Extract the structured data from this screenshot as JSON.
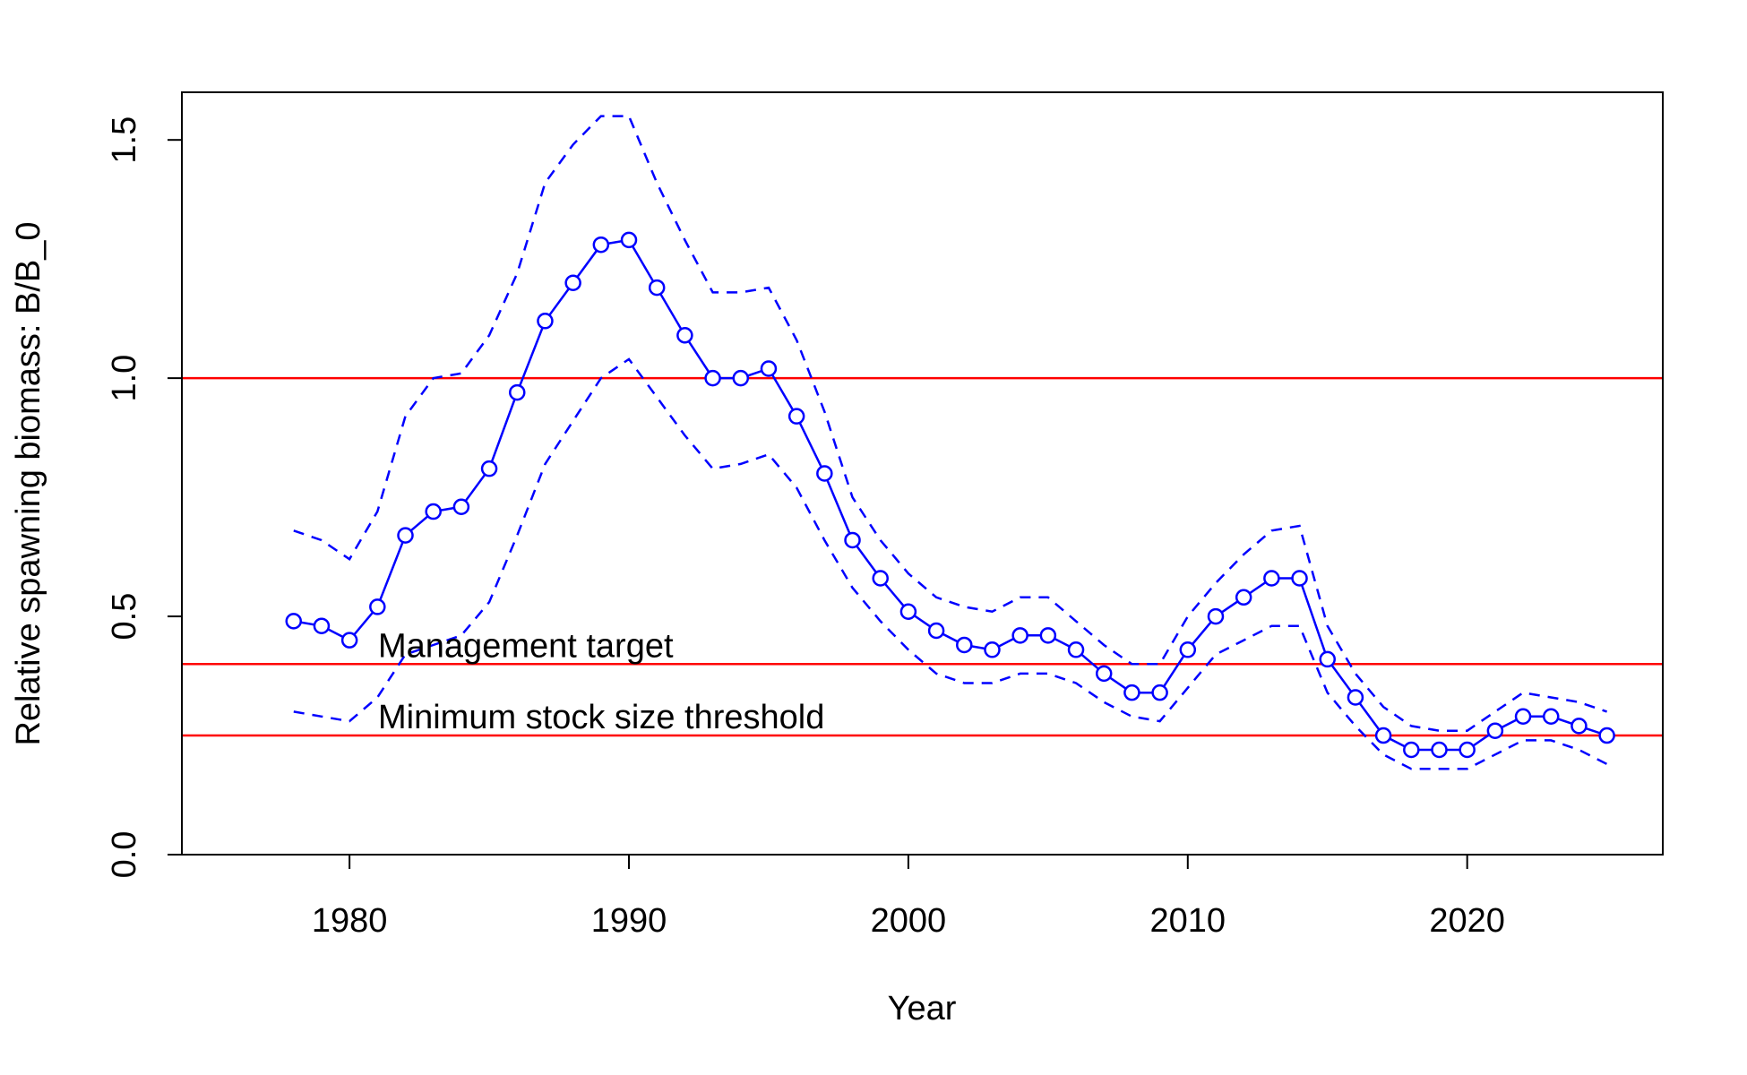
{
  "chart_data": {
    "type": "line",
    "title": "",
    "xlabel": "Year",
    "ylabel": "Relative spawning biomass: B/B_0",
    "xlim": [
      1974,
      2027
    ],
    "ylim": [
      0,
      1.6
    ],
    "x_ticks": [
      1980,
      1990,
      2000,
      2010,
      2020
    ],
    "y_ticks": [
      0.0,
      0.5,
      1.0,
      1.5
    ],
    "x_tick_labels": [
      "1980",
      "1990",
      "2000",
      "2010",
      "2020"
    ],
    "y_tick_labels": [
      "0.0",
      "0.5",
      "1.0",
      "1.5"
    ],
    "grid": false,
    "legend": "none",
    "years": [
      1978,
      1979,
      1980,
      1981,
      1982,
      1983,
      1984,
      1985,
      1986,
      1987,
      1988,
      1989,
      1990,
      1991,
      1992,
      1993,
      1994,
      1995,
      1996,
      1997,
      1998,
      1999,
      2000,
      2001,
      2002,
      2003,
      2004,
      2005,
      2006,
      2007,
      2008,
      2009,
      2010,
      2011,
      2012,
      2013,
      2014,
      2015,
      2016,
      2017,
      2018,
      2019,
      2020,
      2021,
      2022,
      2023,
      2024,
      2025
    ],
    "series": [
      {
        "role": "estimate",
        "style": "line-with-open-circles",
        "color": "#0000FF",
        "values": [
          0.49,
          0.48,
          0.45,
          0.52,
          0.67,
          0.72,
          0.73,
          0.81,
          0.97,
          1.12,
          1.2,
          1.28,
          1.29,
          1.19,
          1.09,
          1.0,
          1.0,
          1.02,
          0.92,
          0.8,
          0.66,
          0.58,
          0.51,
          0.47,
          0.44,
          0.43,
          0.46,
          0.46,
          0.43,
          0.38,
          0.34,
          0.34,
          0.43,
          0.5,
          0.54,
          0.58,
          0.58,
          0.41,
          0.33,
          0.25,
          0.22,
          0.22,
          0.22,
          0.26,
          0.29,
          0.29,
          0.27,
          0.25
        ]
      },
      {
        "role": "upper-bound",
        "style": "dashed",
        "color": "#0000FF",
        "values": [
          0.68,
          0.66,
          0.62,
          0.72,
          0.92,
          1.0,
          1.01,
          1.09,
          1.22,
          1.41,
          1.49,
          1.55,
          1.55,
          1.41,
          1.29,
          1.18,
          1.18,
          1.19,
          1.08,
          0.93,
          0.75,
          0.66,
          0.59,
          0.54,
          0.52,
          0.51,
          0.54,
          0.54,
          0.49,
          0.44,
          0.4,
          0.4,
          0.5,
          0.57,
          0.63,
          0.68,
          0.69,
          0.48,
          0.38,
          0.31,
          0.27,
          0.26,
          0.26,
          0.3,
          0.34,
          0.33,
          0.32,
          0.3
        ]
      },
      {
        "role": "lower-bound",
        "style": "dashed",
        "color": "#0000FF",
        "values": [
          0.3,
          0.29,
          0.28,
          0.33,
          0.42,
          0.44,
          0.46,
          0.53,
          0.67,
          0.82,
          0.91,
          1.0,
          1.04,
          0.96,
          0.88,
          0.81,
          0.82,
          0.84,
          0.77,
          0.66,
          0.56,
          0.49,
          0.43,
          0.38,
          0.36,
          0.36,
          0.38,
          0.38,
          0.36,
          0.32,
          0.29,
          0.28,
          0.35,
          0.42,
          0.45,
          0.48,
          0.48,
          0.34,
          0.27,
          0.21,
          0.18,
          0.18,
          0.18,
          0.21,
          0.24,
          0.24,
          0.22,
          0.19
        ]
      }
    ],
    "reference_lines": [
      {
        "y": 1.0,
        "color": "#FF0000",
        "label": ""
      },
      {
        "y": 0.4,
        "color": "#FF0000",
        "label": "Management target"
      },
      {
        "y": 0.25,
        "color": "#FF0000",
        "label": "Minimum stock size threshold"
      }
    ]
  }
}
